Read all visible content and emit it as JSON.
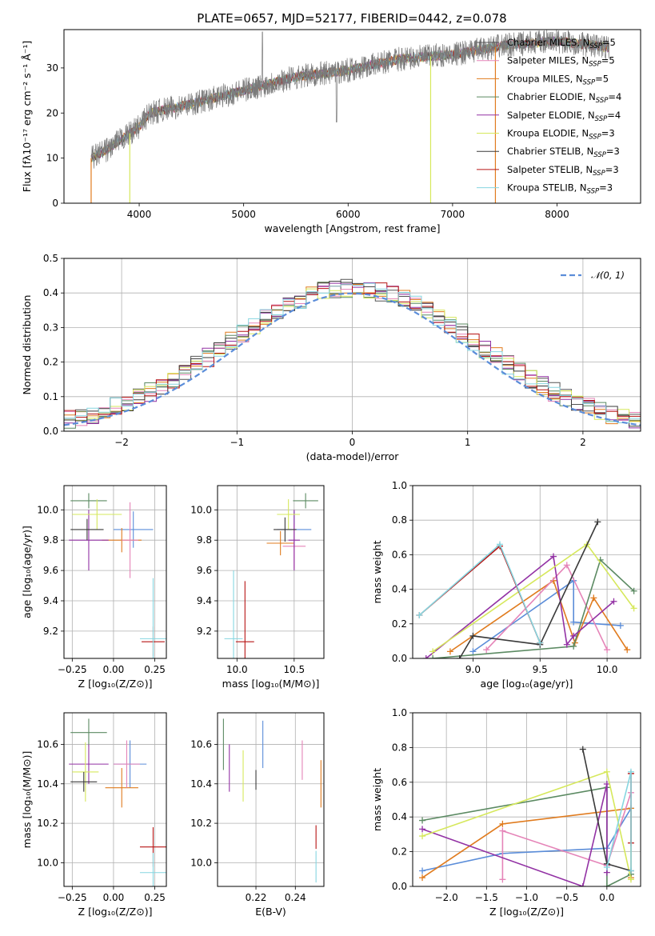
{
  "colors": [
    "#545454",
    "#e584b8",
    "#e07b1e",
    "#5b8a62",
    "#9231a4",
    "#d6e85c",
    "#3a3a3a",
    "#b71414",
    "#86d6e0"
  ],
  "chart_data": [
    {
      "id": "spectrum",
      "type": "line",
      "title": "PLATE=0657, MJD=52177, FIBERID=0442, z=0.078",
      "xlabel": "wavelength [Angstrom, rest frame]",
      "ylabel": "Flux [fλ10⁻¹⁷ erg cm⁻² s⁻¹ Å⁻¹]",
      "xlim": [
        3280,
        8800
      ],
      "ylim": [
        0,
        38.5
      ],
      "xticks": [
        "4000",
        "5000",
        "6000",
        "7000",
        "8000"
      ],
      "yticks": [
        "0",
        "10",
        "20",
        "30"
      ],
      "spectrum_range": [
        3540,
        8500
      ],
      "continuum": [
        [
          3540,
          10
        ],
        [
          3700,
          12
        ],
        [
          4000,
          17
        ],
        [
          4100,
          20
        ],
        [
          4500,
          22
        ],
        [
          5000,
          25
        ],
        [
          5500,
          28
        ],
        [
          6000,
          29.5
        ],
        [
          6500,
          32
        ],
        [
          7000,
          33
        ],
        [
          7500,
          35
        ],
        [
          8000,
          36
        ],
        [
          8500,
          34.5
        ]
      ],
      "legend": [
        {
          "label": "Chabrier MILES, N",
          "sub": "SSP",
          "tail": "=5"
        },
        {
          "label": "Salpeter MILES, N",
          "sub": "SSP",
          "tail": "=5"
        },
        {
          "label": "Kroupa MILES, N",
          "sub": "SSP",
          "tail": "=5"
        },
        {
          "label": "Chabrier ELODIE, N",
          "sub": "SSP",
          "tail": "=4"
        },
        {
          "label": "Salpeter ELODIE, N",
          "sub": "SSP",
          "tail": "=4"
        },
        {
          "label": "Kroupa ELODIE, N",
          "sub": "SSP",
          "tail": "=3"
        },
        {
          "label": "Chabrier STELIB, N",
          "sub": "SSP",
          "tail": "=3"
        },
        {
          "label": "Salpeter STELIB, N",
          "sub": "SSP",
          "tail": "=3"
        },
        {
          "label": "Kroupa STELIB, N",
          "sub": "SSP",
          "tail": "=3"
        }
      ]
    },
    {
      "id": "residuals",
      "type": "histogram",
      "xlabel": "(data-model)/error",
      "ylabel": "Normed distribution",
      "xlim": [
        -2.5,
        2.5
      ],
      "ylim": [
        0,
        0.5
      ],
      "xticks": [
        "−2",
        "−1",
        "0",
        "1",
        "2"
      ],
      "yticks": [
        "0.0",
        "0.1",
        "0.2",
        "0.3",
        "0.4",
        "0.5"
      ],
      "bin_width": 0.1,
      "legend": "𝒩(0, 1)",
      "curve_color": "#5b8dd9"
    },
    {
      "id": "age_vs_Z",
      "type": "errorbar",
      "xlabel": "Z [log₁₀(Z/Z⊙)]",
      "ylabel": "age  [log₁₀(age/yr)]",
      "xlim": [
        -0.3,
        0.32
      ],
      "ylim": [
        9.02,
        10.16
      ],
      "xticks": [
        "−0.25",
        "0.00",
        "0.25"
      ],
      "yticks": [
        "9.2",
        "9.4",
        "9.6",
        "9.8",
        "10.0"
      ],
      "points": [
        {
          "x": 0.12,
          "y": 9.87,
          "xerr": 0.12,
          "yerr": 0.12,
          "c": "#5b8dd9"
        },
        {
          "x": 0.05,
          "y": 9.8,
          "xerr": 0.12,
          "yerr": 0.08,
          "c": "#e07b1e"
        },
        {
          "x": 0.1,
          "y": 9.8,
          "xerr": 0.05,
          "yerr": 0.25,
          "c": "#e584b8"
        },
        {
          "x": -0.15,
          "y": 10.06,
          "xerr": 0.11,
          "yerr": 0.05,
          "c": "#5b8a62"
        },
        {
          "x": -0.15,
          "y": 9.8,
          "xerr": 0.12,
          "yerr": 0.2,
          "c": "#9231a4"
        },
        {
          "x": -0.1,
          "y": 9.97,
          "xerr": 0.15,
          "yerr": 0.1,
          "c": "#d6e85c"
        },
        {
          "x": -0.16,
          "y": 9.87,
          "xerr": 0.1,
          "yerr": 0.07,
          "c": "#3a3a3a"
        },
        {
          "x": 0.24,
          "y": 9.13,
          "xerr": 0.07,
          "yerr": 0.1,
          "c": "#b71414"
        },
        {
          "x": 0.24,
          "y": 9.15,
          "xerr": 0.08,
          "yerr": 0.4,
          "c": "#86d6e0"
        }
      ]
    },
    {
      "id": "age_vs_mass",
      "type": "errorbar",
      "xlabel": "mass [log₁₀(M/M⊙)]",
      "xlim": [
        9.83,
        10.76
      ],
      "ylim": [
        9.02,
        10.16
      ],
      "xticks": [
        "10.0",
        "10.5"
      ],
      "yticks": [
        "9.2",
        "9.4",
        "9.6",
        "9.8",
        "10.0"
      ],
      "points": [
        {
          "x": 10.5,
          "y": 9.87,
          "xerr": 0.15,
          "yerr": 0.12,
          "c": "#5b8dd9"
        },
        {
          "x": 10.38,
          "y": 9.78,
          "xerr": 0.12,
          "yerr": 0.08,
          "c": "#e07b1e"
        },
        {
          "x": 10.5,
          "y": 9.76,
          "xerr": 0.1,
          "yerr": 0.15,
          "c": "#e584b8"
        },
        {
          "x": 10.6,
          "y": 10.06,
          "xerr": 0.11,
          "yerr": 0.05,
          "c": "#5b8a62"
        },
        {
          "x": 10.5,
          "y": 9.8,
          "xerr": 0.05,
          "yerr": 0.2,
          "c": "#9231a4"
        },
        {
          "x": 10.45,
          "y": 9.97,
          "xerr": 0.1,
          "yerr": 0.1,
          "c": "#d6e85c"
        },
        {
          "x": 10.42,
          "y": 9.87,
          "xerr": 0.1,
          "yerr": 0.08,
          "c": "#3a3a3a"
        },
        {
          "x": 10.07,
          "y": 9.13,
          "xerr": 0.08,
          "yerr": 0.4,
          "c": "#b71414"
        },
        {
          "x": 9.97,
          "y": 9.15,
          "xerr": 0.08,
          "yerr": 0.45,
          "c": "#86d6e0"
        }
      ]
    },
    {
      "id": "weight_vs_age",
      "type": "line",
      "xlabel": "age  [log₁₀(age/yr)]",
      "ylabel": "mass weight",
      "xlim": [
        8.55,
        10.25
      ],
      "ylim": [
        0,
        1
      ],
      "xticks": [
        "9.0",
        "9.5",
        "10.0"
      ],
      "yticks": [
        "0.0",
        "0.2",
        "0.4",
        "0.6",
        "0.8",
        "1.0"
      ],
      "series": [
        {
          "c": "#5b8dd9",
          "pts": [
            [
              9.0,
              0.04
            ],
            [
              9.75,
              0.45
            ],
            [
              9.75,
              0.21
            ],
            [
              10.1,
              0.19
            ]
          ]
        },
        {
          "c": "#e07b1e",
          "pts": [
            [
              8.83,
              0.04
            ],
            [
              9.6,
              0.45
            ],
            [
              9.76,
              0.09
            ],
            [
              9.9,
              0.35
            ],
            [
              10.15,
              0.05
            ]
          ]
        },
        {
          "c": "#e584b8",
          "pts": [
            [
              9.1,
              0.05
            ],
            [
              9.7,
              0.54
            ],
            [
              10.0,
              0.05
            ]
          ]
        },
        {
          "c": "#5b8a62",
          "pts": [
            [
              8.7,
              0.0
            ],
            [
              9.75,
              0.07
            ],
            [
              9.95,
              0.57
            ],
            [
              10.2,
              0.39
            ]
          ]
        },
        {
          "c": "#9231a4",
          "pts": [
            [
              8.65,
              0.0
            ],
            [
              9.6,
              0.59
            ],
            [
              9.7,
              0.08
            ],
            [
              9.75,
              0.13
            ],
            [
              10.05,
              0.33
            ]
          ]
        },
        {
          "c": "#d6e85c",
          "pts": [
            [
              8.7,
              0.04
            ],
            [
              9.85,
              0.66
            ],
            [
              10.2,
              0.29
            ]
          ]
        },
        {
          "c": "#3a3a3a",
          "pts": [
            [
              8.9,
              0.0
            ],
            [
              9.0,
              0.13
            ],
            [
              9.5,
              0.08
            ],
            [
              9.93,
              0.79
            ]
          ]
        },
        {
          "c": "#b71414",
          "pts": [
            [
              8.6,
              0.25
            ],
            [
              9.2,
              0.65
            ],
            [
              9.5,
              0.09
            ]
          ]
        },
        {
          "c": "#86d6e0",
          "pts": [
            [
              8.6,
              0.25
            ],
            [
              9.2,
              0.66
            ],
            [
              9.5,
              0.09
            ]
          ]
        }
      ]
    },
    {
      "id": "mass_vs_Z",
      "type": "errorbar",
      "xlabel": "Z [log₁₀(Z/Z⊙)]",
      "ylabel": "mass [log₁₀(M/M⊙)]",
      "xlim": [
        -0.3,
        0.32
      ],
      "ylim": [
        9.88,
        10.76
      ],
      "xticks": [
        "−0.25",
        "0.00",
        "0.25"
      ],
      "yticks": [
        "10.0",
        "10.2",
        "10.4",
        "10.6"
      ],
      "points": [
        {
          "x": 0.1,
          "y": 10.5,
          "xerr": 0.1,
          "yerr": 0.12,
          "c": "#5b8dd9"
        },
        {
          "x": 0.05,
          "y": 10.38,
          "xerr": 0.1,
          "yerr": 0.1,
          "c": "#e07b1e"
        },
        {
          "x": 0.08,
          "y": 10.5,
          "xerr": 0.08,
          "yerr": 0.12,
          "c": "#e584b8"
        },
        {
          "x": -0.15,
          "y": 10.66,
          "xerr": 0.11,
          "yerr": 0.07,
          "c": "#5b8a62"
        },
        {
          "x": -0.15,
          "y": 10.5,
          "xerr": 0.12,
          "yerr": 0.1,
          "c": "#9231a4"
        },
        {
          "x": -0.17,
          "y": 10.46,
          "xerr": 0.08,
          "yerr": 0.15,
          "c": "#d6e85c"
        },
        {
          "x": -0.18,
          "y": 10.41,
          "xerr": 0.08,
          "yerr": 0.05,
          "c": "#3a3a3a"
        },
        {
          "x": 0.24,
          "y": 10.08,
          "xerr": 0.08,
          "yerr": 0.1,
          "c": "#b71414"
        },
        {
          "x": 0.24,
          "y": 9.95,
          "xerr": 0.08,
          "yerr": 0.1,
          "c": "#86d6e0"
        }
      ]
    },
    {
      "id": "mass_vs_EBV",
      "type": "errorbar",
      "xlabel": "E(B-V)",
      "xlim": [
        0.2005,
        0.2545
      ],
      "ylim": [
        9.88,
        10.76
      ],
      "xticks": [
        "0.22",
        "0.24"
      ],
      "yticks": [
        "10.0",
        "10.2",
        "10.4",
        "10.6"
      ],
      "points": [
        {
          "x": 0.2235,
          "y": 10.6,
          "xerr": 0,
          "yerr": 0.12,
          "c": "#5b8dd9"
        },
        {
          "x": 0.253,
          "y": 10.4,
          "xerr": 0,
          "yerr": 0.12,
          "c": "#e07b1e"
        },
        {
          "x": 0.2435,
          "y": 10.52,
          "xerr": 0,
          "yerr": 0.1,
          "c": "#e584b8"
        },
        {
          "x": 0.2035,
          "y": 10.6,
          "xerr": 0,
          "yerr": 0.13,
          "c": "#5b8a62"
        },
        {
          "x": 0.2065,
          "y": 10.48,
          "xerr": 0,
          "yerr": 0.12,
          "c": "#9231a4"
        },
        {
          "x": 0.2135,
          "y": 10.44,
          "xerr": 0,
          "yerr": 0.13,
          "c": "#d6e85c"
        },
        {
          "x": 0.22,
          "y": 10.42,
          "xerr": 0,
          "yerr": 0.05,
          "c": "#3a3a3a"
        },
        {
          "x": 0.2505,
          "y": 10.13,
          "xerr": 0,
          "yerr": 0.06,
          "c": "#b71414"
        },
        {
          "x": 0.2505,
          "y": 9.98,
          "xerr": 0,
          "yerr": 0.08,
          "c": "#86d6e0"
        }
      ]
    },
    {
      "id": "weight_vs_Z",
      "type": "line",
      "xlabel": "Z [log₁₀(Z/Z⊙)]",
      "ylabel": "mass weight",
      "xlim": [
        -2.42,
        0.42
      ],
      "ylim": [
        0,
        1
      ],
      "xticks": [
        "−2.0",
        "−1.5",
        "−1.0",
        "−0.5",
        "0.0"
      ],
      "yticks": [
        "0.0",
        "0.2",
        "0.4",
        "0.6",
        "0.8",
        "1.0"
      ],
      "series": [
        {
          "c": "#5b8dd9",
          "pts": [
            [
              -2.3,
              0.09
            ],
            [
              -1.3,
              0.19
            ],
            [
              0.0,
              0.22
            ],
            [
              0.3,
              0.45
            ]
          ]
        },
        {
          "c": "#e07b1e",
          "pts": [
            [
              -2.3,
              0.05
            ],
            [
              -1.3,
              0.36
            ],
            [
              0.3,
              0.45
            ],
            [
              0.3,
              0.05
            ]
          ]
        },
        {
          "c": "#e584b8",
          "pts": [
            [
              -1.3,
              0.04
            ],
            [
              -1.3,
              0.32
            ],
            [
              0.0,
              0.12
            ],
            [
              0.3,
              0.54
            ]
          ]
        },
        {
          "c": "#5b8a62",
          "pts": [
            [
              -2.3,
              0.38
            ],
            [
              0.0,
              0.57
            ],
            [
              0.0,
              0.0
            ],
            [
              0.3,
              0.07
            ]
          ]
        },
        {
          "c": "#9231a4",
          "pts": [
            [
              -2.3,
              0.33
            ],
            [
              -0.3,
              0.0
            ],
            [
              0.0,
              0.59
            ],
            [
              0.0,
              0.08
            ]
          ]
        },
        {
          "c": "#d6e85c",
          "pts": [
            [
              -2.3,
              0.29
            ],
            [
              0.0,
              0.66
            ],
            [
              0.3,
              0.04
            ]
          ]
        },
        {
          "c": "#3a3a3a",
          "pts": [
            [
              -0.3,
              0.79
            ],
            [
              0.0,
              0.13
            ],
            [
              0.3,
              0.09
            ]
          ]
        },
        {
          "c": "#b71414",
          "pts": [
            [
              0.3,
              0.25
            ],
            [
              0.3,
              0.65
            ]
          ]
        },
        {
          "c": "#86d6e0",
          "pts": [
            [
              0.0,
              0.11
            ],
            [
              0.3,
              0.66
            ],
            [
              0.3,
              0.09
            ]
          ]
        }
      ]
    }
  ]
}
